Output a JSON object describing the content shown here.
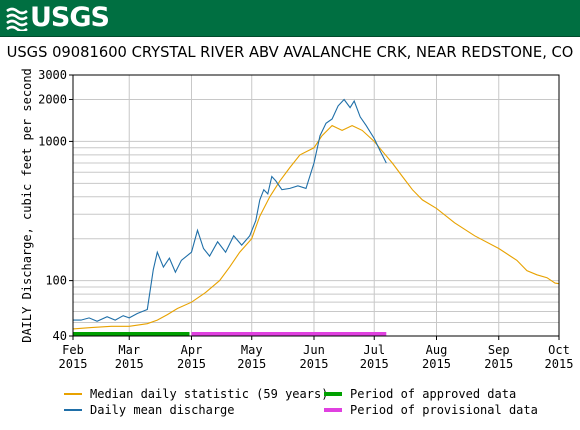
{
  "header": {
    "logo_text": "USGS",
    "title": "USGS 09081600 CRYSTAL RIVER ABV AVALANCHE CRK, NEAR REDSTONE, CO"
  },
  "legend": {
    "median_label": "Median daily statistic (59 years)",
    "daily_label": "Daily mean discharge",
    "approved_label": "Period of approved data",
    "provisional_label": "Period of provisional data"
  },
  "colors": {
    "banner": "#006f41",
    "median": "#e8a200",
    "daily": "#1f6fa8",
    "approved": "#00a000",
    "provisional": "#e040e0",
    "grid": "#c8c8c8"
  },
  "chart_data": {
    "type": "line",
    "y_scale": "log",
    "ylabel": "DAILY Discharge, cubic feet per second",
    "xlabel": "",
    "ylim": [
      40,
      3000
    ],
    "xlim": [
      "2015-02-01",
      "2015-10-01"
    ],
    "y_ticks": [
      40,
      100,
      1000,
      2000,
      3000
    ],
    "y_tick_labels": [
      "40",
      "100",
      "1000",
      "2000",
      "3000"
    ],
    "x_ticks": [
      {
        "date": "2015-02-01",
        "label": "Feb",
        "year": "2015"
      },
      {
        "date": "2015-03-01",
        "label": "Mar",
        "year": "2015"
      },
      {
        "date": "2015-04-01",
        "label": "Apr",
        "year": "2015"
      },
      {
        "date": "2015-05-01",
        "label": "May",
        "year": "2015"
      },
      {
        "date": "2015-06-01",
        "label": "Jun",
        "year": "2015"
      },
      {
        "date": "2015-07-01",
        "label": "Jul",
        "year": "2015"
      },
      {
        "date": "2015-08-01",
        "label": "Aug",
        "year": "2015"
      },
      {
        "date": "2015-09-01",
        "label": "Sep",
        "year": "2015"
      },
      {
        "date": "2015-10-01",
        "label": "Oct",
        "year": "2015"
      }
    ],
    "grid": true,
    "series": [
      {
        "name": "Median daily statistic (59 years)",
        "points": [
          [
            "2015-02-01",
            45
          ],
          [
            "2015-02-10",
            46
          ],
          [
            "2015-02-20",
            47
          ],
          [
            "2015-03-01",
            47
          ],
          [
            "2015-03-10",
            49
          ],
          [
            "2015-03-15",
            52
          ],
          [
            "2015-03-20",
            57
          ],
          [
            "2015-03-25",
            63
          ],
          [
            "2015-04-01",
            70
          ],
          [
            "2015-04-08",
            82
          ],
          [
            "2015-04-15",
            100
          ],
          [
            "2015-04-20",
            125
          ],
          [
            "2015-04-25",
            160
          ],
          [
            "2015-05-01",
            200
          ],
          [
            "2015-05-05",
            290
          ],
          [
            "2015-05-10",
            400
          ],
          [
            "2015-05-15",
            520
          ],
          [
            "2015-05-20",
            650
          ],
          [
            "2015-05-25",
            800
          ],
          [
            "2015-06-01",
            900
          ],
          [
            "2015-06-05",
            1100
          ],
          [
            "2015-06-10",
            1300
          ],
          [
            "2015-06-15",
            1200
          ],
          [
            "2015-06-20",
            1300
          ],
          [
            "2015-06-25",
            1200
          ],
          [
            "2015-07-01",
            1000
          ],
          [
            "2015-07-05",
            850
          ],
          [
            "2015-07-10",
            700
          ],
          [
            "2015-07-15",
            560
          ],
          [
            "2015-07-20",
            450
          ],
          [
            "2015-07-25",
            380
          ],
          [
            "2015-08-01",
            330
          ],
          [
            "2015-08-10",
            260
          ],
          [
            "2015-08-20",
            210
          ],
          [
            "2015-09-01",
            170
          ],
          [
            "2015-09-10",
            140
          ],
          [
            "2015-09-15",
            118
          ],
          [
            "2015-09-20",
            110
          ],
          [
            "2015-09-25",
            105
          ],
          [
            "2015-09-29",
            96
          ],
          [
            "2015-10-01",
            95
          ]
        ]
      },
      {
        "name": "Daily mean discharge",
        "points": [
          [
            "2015-02-01",
            52
          ],
          [
            "2015-02-05",
            52
          ],
          [
            "2015-02-09",
            54
          ],
          [
            "2015-02-13",
            51
          ],
          [
            "2015-02-18",
            55
          ],
          [
            "2015-02-22",
            52
          ],
          [
            "2015-02-26",
            56
          ],
          [
            "2015-03-01",
            54
          ],
          [
            "2015-03-05",
            58
          ],
          [
            "2015-03-10",
            62
          ],
          [
            "2015-03-13",
            120
          ],
          [
            "2015-03-15",
            160
          ],
          [
            "2015-03-18",
            125
          ],
          [
            "2015-03-21",
            145
          ],
          [
            "2015-03-24",
            115
          ],
          [
            "2015-03-27",
            140
          ],
          [
            "2015-04-01",
            160
          ],
          [
            "2015-04-04",
            230
          ],
          [
            "2015-04-07",
            170
          ],
          [
            "2015-04-10",
            150
          ],
          [
            "2015-04-14",
            190
          ],
          [
            "2015-04-18",
            160
          ],
          [
            "2015-04-22",
            210
          ],
          [
            "2015-04-26",
            180
          ],
          [
            "2015-04-30",
            210
          ],
          [
            "2015-05-03",
            270
          ],
          [
            "2015-05-05",
            380
          ],
          [
            "2015-05-07",
            450
          ],
          [
            "2015-05-09",
            420
          ],
          [
            "2015-05-11",
            560
          ],
          [
            "2015-05-13",
            520
          ],
          [
            "2015-05-16",
            450
          ],
          [
            "2015-05-20",
            460
          ],
          [
            "2015-05-24",
            480
          ],
          [
            "2015-05-28",
            460
          ],
          [
            "2015-06-01",
            700
          ],
          [
            "2015-06-04",
            1100
          ],
          [
            "2015-06-07",
            1350
          ],
          [
            "2015-06-10",
            1450
          ],
          [
            "2015-06-13",
            1800
          ],
          [
            "2015-06-16",
            2000
          ],
          [
            "2015-06-19",
            1750
          ],
          [
            "2015-06-21",
            1950
          ],
          [
            "2015-06-24",
            1500
          ],
          [
            "2015-06-27",
            1300
          ],
          [
            "2015-07-01",
            1050
          ],
          [
            "2015-07-04",
            850
          ],
          [
            "2015-07-07",
            700
          ]
        ]
      }
    ],
    "periods": [
      {
        "name": "Period of approved data",
        "start": "2015-02-01",
        "end": "2015-03-31"
      },
      {
        "name": "Period of provisional data",
        "start": "2015-04-01",
        "end": "2015-07-07"
      }
    ]
  }
}
